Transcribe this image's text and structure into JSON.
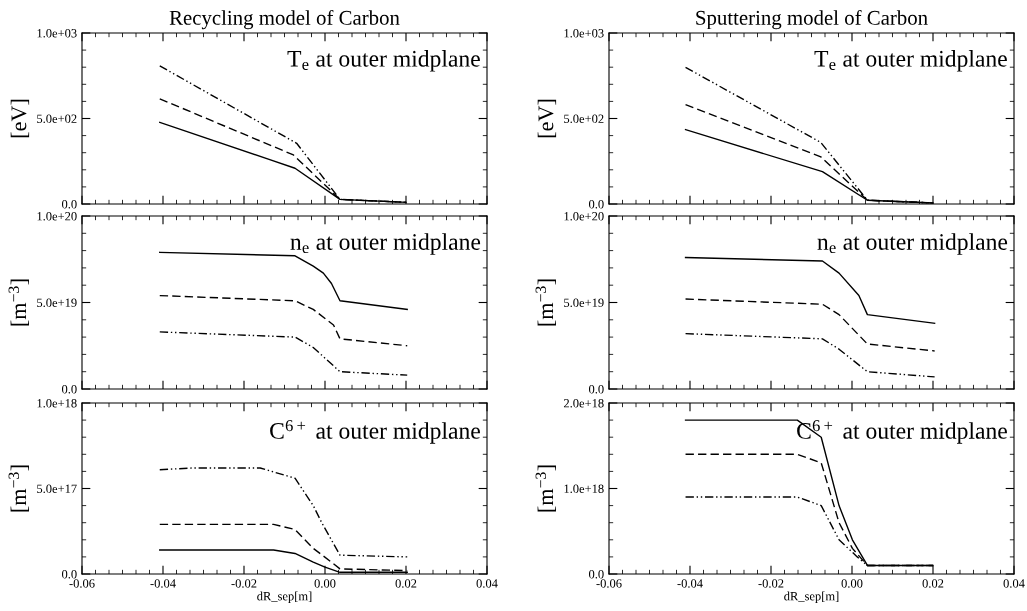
{
  "chart_data": [
    {
      "type": "line",
      "title": "Recycling model of Carbon",
      "ylabel": "[eV]",
      "annotations": [
        "T$_{e}$ at outer midplane"
      ],
      "tick_labels": "y",
      "xlim": [
        -0.06,
        0.04
      ],
      "xticks": [
        -0.06,
        -0.04,
        -0.02,
        0.0,
        0.02,
        0.04
      ],
      "ylim": [
        0,
        1000
      ],
      "yticks": [
        {
          "value": 0,
          "label": "0.0"
        },
        {
          "value": 500,
          "label": "5.0e+02"
        },
        {
          "value": 1000,
          "label": "1.0e+03"
        }
      ],
      "grid": false,
      "marker": "none",
      "series": [
        {
          "color": "#000000",
          "line_style": "solid",
          "x": [
            -0.0408,
            -0.014,
            -0.0074,
            0.0037,
            0.02
          ],
          "values": [
            477,
            262,
            209,
            27,
            10
          ]
        },
        {
          "color": "#000000",
          "line_style": "dashed",
          "x": [
            -0.0408,
            -0.0078,
            0.0037,
            0.02
          ],
          "values": [
            615,
            287,
            27,
            10
          ]
        },
        {
          "color": "#000000",
          "line_style": "dashdot",
          "x": [
            -0.0408,
            -0.007,
            0.0037,
            0.02
          ],
          "values": [
            808,
            355,
            27,
            10
          ]
        }
      ]
    },
    {
      "type": "line",
      "title": "Sputtering model of Carbon",
      "ylabel": "[eV]",
      "annotations": [
        "T$_{e}$ at outer midplane"
      ],
      "tick_labels": "y",
      "xlim": [
        -0.06,
        0.04
      ],
      "xticks": [
        -0.06,
        -0.04,
        -0.02,
        0.0,
        0.02,
        0.04
      ],
      "ylim": [
        0,
        1000
      ],
      "yticks": [
        {
          "value": 0,
          "label": "0.0"
        },
        {
          "value": 500,
          "label": "5.0e+02"
        },
        {
          "value": 1000,
          "label": "1.0e+03"
        }
      ],
      "grid": false,
      "marker": "none",
      "series": [
        {
          "color": "#000000",
          "line_style": "solid",
          "x": [
            -0.0411,
            -0.0073,
            0.0038,
            0.02
          ],
          "values": [
            435,
            189,
            22,
            6
          ]
        },
        {
          "color": "#000000",
          "line_style": "dashed",
          "x": [
            -0.0411,
            -0.0077,
            0.0038,
            0.02
          ],
          "values": [
            581,
            276,
            22,
            6
          ]
        },
        {
          "color": "#000000",
          "line_style": "dashdot",
          "x": [
            -0.0411,
            -0.0077,
            0.0038,
            0.02
          ],
          "values": [
            799,
            360,
            22,
            6
          ]
        }
      ]
    },
    {
      "type": "line",
      "ylabel": "[m$^{−3}$]",
      "annotations": [
        "n$_{e}$ at outer midplane"
      ],
      "tick_labels": "y",
      "xlim": [
        -0.06,
        0.04
      ],
      "xticks": [
        -0.06,
        -0.04,
        -0.02,
        0.0,
        0.02,
        0.04
      ],
      "ylim": [
        0,
        1e+20
      ],
      "yticks": [
        {
          "value": 0,
          "label": "0.0"
        },
        {
          "value": 5e+19,
          "label": "5.0e+19"
        },
        {
          "value": 1e+20,
          "label": "1.0e+20"
        }
      ],
      "grid": false,
      "marker": "none",
      "series": [
        {
          "color": "#000000",
          "line_style": "solid",
          "x": [
            -0.0408,
            -0.0074,
            -0.0029,
            -0.0004,
            0.0016,
            0.0037,
            0.0203
          ],
          "values": [
            7.9e+19,
            7.7e+19,
            7.1e+19,
            6.7e+19,
            6.1e+19,
            5.1e+19,
            4.6e+19
          ]
        },
        {
          "color": "#000000",
          "line_style": "dashed",
          "x": [
            -0.0408,
            -0.0074,
            -0.0029,
            0.0021,
            0.0037,
            0.0203
          ],
          "values": [
            5.4e+19,
            5.1e+19,
            4.6e+19,
            3.7e+19,
            2.9e+19,
            2.5e+19
          ]
        },
        {
          "color": "#000000",
          "line_style": "dashdot",
          "x": [
            -0.0408,
            -0.0074,
            -0.0029,
            0.0037,
            0.0203
          ],
          "values": [
            3.3e+19,
            3e+19,
            2.4e+19,
            1e+19,
            8e+18
          ]
        }
      ]
    },
    {
      "type": "line",
      "ylabel": "[m$^{−3}$]",
      "annotations": [
        "n$_{e}$ at outer midplane"
      ],
      "tick_labels": "y",
      "xlim": [
        -0.06,
        0.04
      ],
      "xticks": [
        -0.06,
        -0.04,
        -0.02,
        0.0,
        0.02,
        0.04
      ],
      "ylim": [
        0,
        1e+20
      ],
      "yticks": [
        {
          "value": 0,
          "label": "0.0"
        },
        {
          "value": 5e+19,
          "label": "5.0e+19"
        },
        {
          "value": 1e+20,
          "label": "1.0e+20"
        }
      ],
      "grid": false,
      "marker": "none",
      "series": [
        {
          "color": "#000000",
          "line_style": "solid",
          "x": [
            -0.0411,
            -0.0073,
            -0.0032,
            0.0017,
            0.0038,
            0.0204
          ],
          "values": [
            7.6e+19,
            7.4e+19,
            6.7e+19,
            5.4e+19,
            4.3e+19,
            3.8e+19
          ]
        },
        {
          "color": "#000000",
          "line_style": "dashed",
          "x": [
            -0.0411,
            -0.0073,
            -0.0032,
            0.0038,
            0.0204
          ],
          "values": [
            5.2e+19,
            4.9e+19,
            4.3e+19,
            2.6e+19,
            2.2e+19
          ]
        },
        {
          "color": "#000000",
          "line_style": "dashdot",
          "x": [
            -0.0411,
            -0.0073,
            -0.0032,
            0.0038,
            0.0204
          ],
          "values": [
            3.2e+19,
            2.9e+19,
            2.3e+19,
            1e+19,
            7e+18
          ]
        }
      ]
    },
    {
      "type": "line",
      "xlabel": "dR_sep[m]",
      "ylabel": "[m$^{−3}$]",
      "annotations": [
        "C$^{6+}$ at outer midplane"
      ],
      "xlim": [
        -0.06,
        0.04
      ],
      "xticks": [
        -0.06,
        -0.04,
        -0.02,
        {
          "value": 0.0,
          "label": "0.00"
        },
        0.02,
        0.04
      ],
      "ylim": [
        0,
        1e+18
      ],
      "yticks": [
        {
          "value": 0,
          "label": "0.0"
        },
        {
          "value": 5e+17,
          "label": "5.0e+17"
        },
        {
          "value": 1e+18,
          "label": "1.0e+18"
        }
      ],
      "grid": false,
      "marker": "none",
      "series": [
        {
          "color": "#000000",
          "line_style": "solid",
          "x": [
            -0.0408,
            -0.0127,
            -0.0074,
            -0.0029,
            0.0,
            0.0037,
            0.0203
          ],
          "values": [
            1.4e+17,
            1.4e+17,
            1.2e+17,
            7e+16,
            4e+16,
            1e+16,
            1e+16
          ]
        },
        {
          "color": "#000000",
          "line_style": "dashed",
          "x": [
            -0.0408,
            -0.0127,
            -0.0074,
            -0.0029,
            0.0021,
            0.0037,
            0.0203
          ],
          "values": [
            2.9e+17,
            2.9e+17,
            2.6e+17,
            1.5e+17,
            6e+16,
            3e+16,
            2e+16
          ]
        },
        {
          "color": "#000000",
          "line_style": "dashdot",
          "x": [
            -0.0408,
            -0.0325,
            -0.016,
            -0.0074,
            -0.0029,
            -0.0008,
            0.0037,
            0.0203
          ],
          "values": [
            6.1e+17,
            6.2e+17,
            6.2e+17,
            5.6e+17,
            4e+17,
            3e+17,
            1.1e+17,
            1e+17
          ]
        }
      ]
    },
    {
      "type": "line",
      "xlabel": "dR_sep[m]",
      "ylabel": "[m$^{−3}$]",
      "annotations": [
        "C$^{6+}$ at outer midplane"
      ],
      "xlim": [
        -0.06,
        0.04
      ],
      "xticks": [
        -0.06,
        -0.04,
        -0.02,
        {
          "value": 0.0,
          "label": "0.00"
        },
        0.02,
        0.04
      ],
      "ylim": [
        0,
        2e+18
      ],
      "yticks": [
        {
          "value": 0,
          "label": "0.0"
        },
        {
          "value": 1e+18,
          "label": "1.0e+18"
        },
        {
          "value": 2e+18,
          "label": "2.0e+18"
        }
      ],
      "grid": false,
      "marker": "none",
      "series": [
        {
          "color": "#000000",
          "line_style": "solid",
          "x": [
            -0.0411,
            -0.0258,
            -0.0135,
            -0.0076,
            -0.0032,
            0.0001,
            0.0038,
            0.02
          ],
          "values": [
            1.8e+18,
            1.8e+18,
            1.8e+18,
            1.6e+18,
            8e+17,
            4e+17,
            1e+17,
            1e+17
          ]
        },
        {
          "color": "#000000",
          "line_style": "dashed",
          "x": [
            -0.0411,
            -0.0135,
            -0.0076,
            -0.0032,
            0.0001,
            0.0038,
            0.02
          ],
          "values": [
            1.4e+18,
            1.4e+18,
            1.3e+18,
            6e+17,
            3e+17,
            1e+17,
            1e+17
          ]
        },
        {
          "color": "#000000",
          "line_style": "dashdot",
          "x": [
            -0.0411,
            -0.0258,
            -0.0135,
            -0.0076,
            -0.0032,
            0.0013,
            0.0038,
            0.02
          ],
          "values": [
            9e+17,
            9e+17,
            9e+17,
            8e+17,
            4e+17,
            2e+17,
            1e+17,
            1e+17
          ]
        }
      ]
    }
  ]
}
